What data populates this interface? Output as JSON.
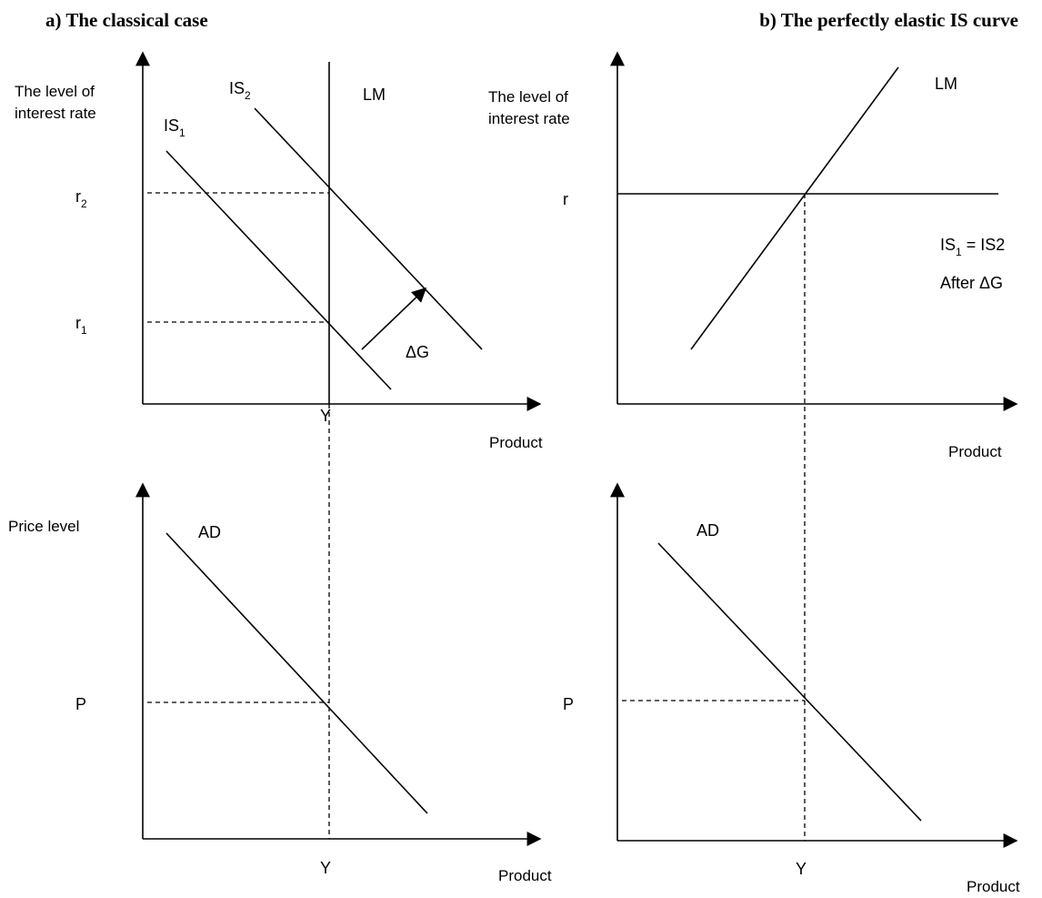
{
  "panel_a": {
    "title": "a)    The classical case",
    "top": {
      "y_axis_label_line1": "The level of",
      "y_axis_label_line2": "interest rate",
      "x_axis_label": "Product",
      "r2": {
        "base": "r",
        "sub": "2"
      },
      "r1": {
        "base": "r",
        "sub": "1"
      },
      "y_tick": "Y",
      "is1": {
        "base": "IS",
        "sub": "1"
      },
      "is2": {
        "base": "IS",
        "sub": "2"
      },
      "lm": "LM",
      "shift": "ΔG"
    },
    "bottom": {
      "y_axis_label": "Price level",
      "x_axis_label": "Product",
      "p_tick": "P",
      "y_tick": "Y",
      "ad": "AD"
    }
  },
  "panel_b": {
    "title": "b) The perfectly elastic IS curve",
    "top": {
      "y_axis_label_line1": "The level of",
      "y_axis_label_line2": "interest rate",
      "x_axis_label": "Product",
      "r_tick": "r",
      "lm": "LM",
      "is_base": "IS",
      "is_sub": "1",
      "is_rest": " = IS2",
      "after": "After ΔG"
    },
    "bottom": {
      "x_axis_label": "Product",
      "p_tick": "P",
      "y_tick": "Y",
      "ad": "AD"
    }
  }
}
